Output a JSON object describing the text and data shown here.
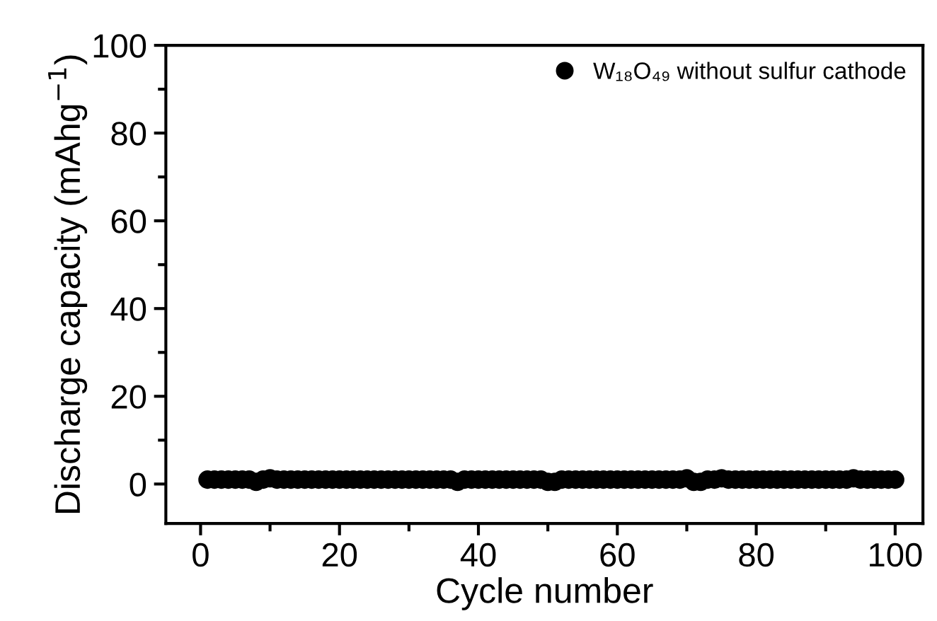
{
  "chart_data": {
    "type": "scatter",
    "xlabel": "Cycle number",
    "ylabel": "Discharge capacity (mAhg$^{−1}$)",
    "x": [
      1,
      2,
      3,
      4,
      5,
      6,
      7,
      8,
      9,
      10,
      11,
      12,
      13,
      14,
      15,
      16,
      17,
      18,
      19,
      20,
      21,
      22,
      23,
      24,
      25,
      26,
      27,
      28,
      29,
      30,
      31,
      32,
      33,
      34,
      35,
      36,
      37,
      38,
      39,
      40,
      41,
      42,
      43,
      44,
      45,
      46,
      47,
      48,
      49,
      50,
      51,
      52,
      53,
      54,
      55,
      56,
      57,
      58,
      59,
      60,
      61,
      62,
      63,
      64,
      65,
      66,
      67,
      68,
      69,
      70,
      71,
      72,
      73,
      74,
      75,
      76,
      77,
      78,
      79,
      80,
      81,
      82,
      83,
      84,
      85,
      86,
      87,
      88,
      89,
      90,
      91,
      92,
      93,
      94,
      95,
      96,
      97,
      98,
      99,
      100
    ],
    "series": [
      {
        "name": "W₁₈O₄₉ without sulfur cathode",
        "color": "#000000",
        "values": [
          1,
          1,
          1,
          1,
          1,
          1,
          1,
          0.5,
          1,
          1.3,
          1,
          1,
          1,
          1,
          1,
          1,
          1,
          1,
          1,
          1,
          1,
          1,
          1,
          1,
          1,
          1,
          1,
          1,
          1,
          1,
          1,
          1,
          1,
          1,
          1,
          1,
          0.5,
          1,
          1,
          1,
          1,
          1,
          1,
          1,
          1,
          1,
          1,
          1,
          1,
          0.5,
          0.5,
          1,
          1,
          1,
          1,
          1,
          1,
          1,
          1,
          1,
          1,
          1,
          1,
          1,
          1,
          1,
          1,
          1,
          1,
          1.3,
          0.5,
          0.5,
          1,
          1,
          1.3,
          1,
          1,
          1,
          1,
          1,
          1,
          1,
          1,
          1,
          1,
          1,
          1,
          1,
          1,
          1,
          1,
          1,
          1,
          1.3,
          1,
          1,
          1,
          1,
          1,
          1
        ]
      }
    ],
    "xlim": [
      -5,
      104
    ],
    "xticks": [
      0,
      20,
      40,
      60,
      80,
      100
    ],
    "ylim": [
      -9,
      100
    ],
    "yticks": [
      0,
      20,
      40,
      60,
      80,
      100
    ],
    "marker": "circle",
    "legend": "top right",
    "grid": false
  }
}
